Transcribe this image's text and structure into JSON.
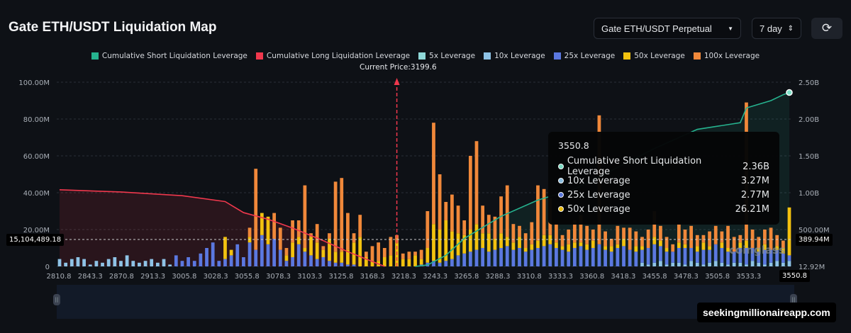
{
  "header": {
    "title": "Gate ETH/USDT Liquidation Map",
    "pair_select": "Gate ETH/USDT Perpetual",
    "range_select": "7 day",
    "refresh_icon": "refresh-icon"
  },
  "legend": [
    {
      "label": "Cumulative Short Liquidation Leverage",
      "color": "#26b38f"
    },
    {
      "label": "Cumulative Long Liquidation Leverage",
      "color": "#f0384d"
    },
    {
      "label": "5x Leverage",
      "color": "#8fd8d8"
    },
    {
      "label": "10x Leverage",
      "color": "#8ec3e6"
    },
    {
      "label": "25x Leverage",
      "color": "#5b78e0"
    },
    {
      "label": "50x Leverage",
      "color": "#f2c20f"
    },
    {
      "label": "100x Leverage",
      "color": "#f0883a"
    }
  ],
  "current_price_label": "Current Price:3199.6",
  "crosshair": {
    "left_value": "15,104,489.18",
    "right_value": "389.94M",
    "x_value": "3550.8",
    "right_bottom": "12.92M"
  },
  "tooltip": {
    "title": "3550.8",
    "rows": [
      {
        "label": "Cumulative Short Liquidation Leverage",
        "value": "2.36B",
        "color": "#7ee0c8"
      },
      {
        "label": "10x Leverage",
        "value": "3.27M",
        "color": "#8ec3e6"
      },
      {
        "label": "25x Leverage",
        "value": "2.77M",
        "color": "#5b78e0"
      },
      {
        "label": "50x Leverage",
        "value": "26.21M",
        "color": "#f2c20f"
      }
    ]
  },
  "watermark": "seekingmillionaireapp.com",
  "brand": "coinglass",
  "chart_data": {
    "type": "bar",
    "x_ticks": [
      "2810.8",
      "2843.3",
      "2870.8",
      "2913.3",
      "3005.8",
      "3028.3",
      "3055.8",
      "3078.3",
      "3103.3",
      "3125.8",
      "3168.3",
      "3218.3",
      "3243.3",
      "3265.8",
      "3288.3",
      "3310.8",
      "3333.3",
      "3360.8",
      "3418.3",
      "3455.8",
      "3478.3",
      "3505.8",
      "3533.3",
      "3550.8"
    ],
    "left_axis": {
      "ticks": [
        "0",
        "20.00M",
        "40.00M",
        "60.00M",
        "80.00M",
        "100.00M"
      ],
      "ylim_millions": [
        0,
        100
      ]
    },
    "right_axis": {
      "ticks": [
        "500.00M",
        "1.00B",
        "1.50B",
        "2.00B",
        "2.50B"
      ],
      "ylim_billions": [
        0,
        2.5
      ]
    },
    "current_price_index": 55,
    "bar_units": "M",
    "series": [
      {
        "name": "10x Leverage",
        "color": "#8ec3e6",
        "values": [
          4,
          2,
          4,
          5,
          4,
          1,
          3,
          2,
          4,
          5,
          3,
          6,
          3,
          2,
          3,
          4,
          2,
          4,
          1,
          0,
          0,
          0,
          0,
          0,
          0,
          0,
          0,
          0,
          0,
          0,
          0,
          0,
          0,
          0,
          0,
          0,
          0,
          0,
          0,
          0,
          0,
          0,
          0,
          0,
          0,
          0,
          0,
          0,
          0,
          0,
          0,
          0,
          0,
          0,
          0,
          0,
          0,
          0,
          0,
          0,
          0,
          0,
          0,
          0,
          0,
          0,
          0,
          0,
          0,
          0,
          0,
          0,
          0,
          0,
          0,
          0,
          0,
          0,
          0,
          0,
          0,
          0,
          0,
          0,
          0,
          0,
          0,
          0,
          0,
          0,
          0,
          0,
          0,
          0,
          0,
          2,
          1,
          2,
          3,
          1,
          2,
          2,
          1,
          3,
          2,
          1,
          2,
          3,
          2,
          1,
          2,
          2,
          1,
          3,
          2,
          1,
          2,
          3,
          2,
          3
        ]
      },
      {
        "name": "25x Leverage",
        "color": "#5b78e0",
        "values": [
          0,
          0,
          0,
          0,
          0,
          0,
          0,
          0,
          0,
          0,
          0,
          0,
          0,
          0,
          0,
          0,
          0,
          0,
          0,
          6,
          3,
          5,
          3,
          7,
          10,
          13,
          3,
          4,
          6,
          12,
          5,
          13,
          9,
          17,
          12,
          15,
          9,
          3,
          5,
          12,
          8,
          6,
          4,
          5,
          3,
          2,
          2,
          1,
          1,
          0,
          0,
          0,
          0,
          0,
          0,
          0,
          0,
          0,
          0,
          1,
          2,
          3,
          2,
          3,
          4,
          6,
          7,
          8,
          9,
          10,
          8,
          9,
          10,
          11,
          9,
          10,
          8,
          9,
          10,
          11,
          12,
          10,
          9,
          8,
          10,
          11,
          9,
          10,
          12,
          9,
          8,
          10,
          11,
          9,
          8,
          7,
          9,
          10,
          8,
          7,
          6,
          8,
          9,
          7,
          6,
          8,
          7,
          9,
          8,
          7,
          6,
          8,
          9,
          7,
          6,
          8,
          7,
          6,
          5,
          3
        ]
      },
      {
        "name": "50x Leverage",
        "color": "#f2c20f",
        "values": [
          0,
          0,
          0,
          0,
          0,
          0,
          0,
          0,
          0,
          0,
          0,
          0,
          0,
          0,
          0,
          0,
          0,
          0,
          0,
          0,
          0,
          0,
          0,
          0,
          0,
          0,
          0,
          12,
          3,
          0,
          0,
          3,
          0,
          12,
          15,
          0,
          0,
          3,
          8,
          4,
          2,
          10,
          9,
          4,
          12,
          6,
          6,
          8,
          12,
          16,
          5,
          3,
          3,
          5,
          6,
          13,
          4,
          4,
          6,
          3,
          8,
          20,
          18,
          22,
          15,
          12,
          10,
          12,
          14,
          8,
          10,
          6,
          8,
          5,
          4,
          6,
          2,
          3,
          4,
          6,
          5,
          3,
          2,
          4,
          3,
          2,
          3,
          4,
          0,
          2,
          3,
          2,
          4,
          0,
          3,
          2,
          0,
          4,
          3,
          2,
          0,
          3,
          2,
          0,
          3,
          4,
          2,
          0,
          3,
          2,
          0,
          3,
          4,
          0,
          2,
          3,
          0,
          2,
          3,
          26
        ]
      },
      {
        "name": "100x Leverage",
        "color": "#f0883a",
        "values": [
          0,
          0,
          0,
          0,
          0,
          0,
          0,
          0,
          0,
          0,
          0,
          0,
          0,
          0,
          0,
          0,
          0,
          0,
          0,
          0,
          0,
          0,
          0,
          0,
          0,
          0,
          0,
          0,
          0,
          0,
          0,
          5,
          44,
          0,
          0,
          14,
          12,
          4,
          12,
          9,
          34,
          2,
          10,
          2,
          3,
          38,
          40,
          20,
          5,
          12,
          3,
          8,
          10,
          5,
          10,
          4,
          3,
          4,
          2,
          5,
          20,
          55,
          30,
          10,
          20,
          15,
          8,
          40,
          45,
          15,
          10,
          12,
          20,
          28,
          10,
          6,
          8,
          12,
          30,
          25,
          20,
          10,
          6,
          8,
          12,
          15,
          10,
          6,
          70,
          8,
          4,
          10,
          6,
          12,
          8,
          5,
          10,
          14,
          8,
          6,
          4,
          10,
          8,
          12,
          6,
          4,
          8,
          10,
          6,
          12,
          8,
          4,
          75,
          10,
          6,
          8,
          12,
          6,
          4,
          0
        ]
      }
    ],
    "lines_units": "B",
    "lines": [
      {
        "name": "Cumulative Long Liquidation Leverage",
        "color": "#f0384d",
        "points": [
          [
            0,
            1.04
          ],
          [
            10,
            1.01
          ],
          [
            20,
            0.96
          ],
          [
            27,
            0.88
          ],
          [
            30,
            0.73
          ],
          [
            34,
            0.64
          ],
          [
            38,
            0.52
          ],
          [
            43,
            0.35
          ],
          [
            47,
            0.2
          ],
          [
            50,
            0.1
          ],
          [
            53,
            0
          ]
        ]
      },
      {
        "name": "Cumulative Short Liquidation Leverage",
        "color": "#26b38f",
        "points": [
          [
            58,
            0
          ],
          [
            60,
            0.02
          ],
          [
            63,
            0.15
          ],
          [
            66,
            0.38
          ],
          [
            72,
            0.68
          ],
          [
            78,
            0.9
          ],
          [
            84,
            1.05
          ],
          [
            90,
            1.3
          ],
          [
            97,
            1.6
          ],
          [
            104,
            1.86
          ],
          [
            111,
            1.95
          ],
          [
            112,
            2.15
          ],
          [
            116,
            2.25
          ],
          [
            118,
            2.33
          ],
          [
            119,
            2.36
          ]
        ]
      }
    ]
  }
}
